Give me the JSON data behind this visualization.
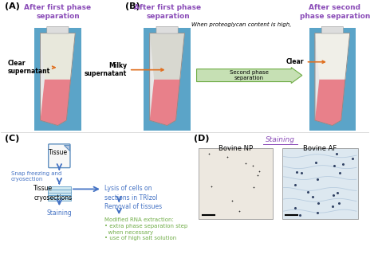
{
  "bg_color": "#ffffff",
  "purple_color": "#8B4DB8",
  "blue_color": "#4472C4",
  "blue_text_color": "#4472C4",
  "orange_arrow_color": "#E07020",
  "green_color": "#70AD47",
  "panel_A": {
    "label": "(A)",
    "title": "After first phase\nseparation",
    "annotation": "Clear\nsupernatant"
  },
  "panel_B": {
    "label": "(B)",
    "title1": "After first phase\nseparation",
    "title2": "After second\nphase separation",
    "subtitle": "When proteoglycan content is high,",
    "annotation1": "Milky\nsupernatant",
    "annotation2": "Clear",
    "arrow_label": "Second phase\nseparation"
  },
  "panel_C": {
    "label": "(C)",
    "tissue_label": "Tissue",
    "snap_label": "Snap freezing and\ncryosection",
    "cryosection_label": "Tissue\ncryosections",
    "staining_label": "Staining",
    "lysis_label": "Lysis of cells on\nsections in TRIzol",
    "removal_label": "Removal of tissues",
    "modified_label": "Modified RNA extraction:\n• extra phase separation step\n  when necessary\n• use of high salt solution"
  },
  "panel_D": {
    "label": "(D)",
    "staining_label": "Staining",
    "bovine_np": "Bovine NP",
    "bovine_af": "Bovine AF"
  }
}
